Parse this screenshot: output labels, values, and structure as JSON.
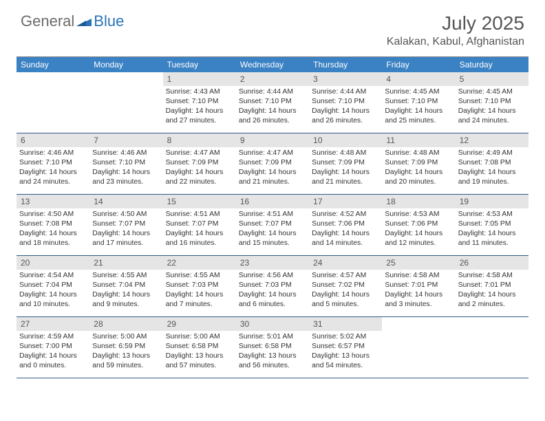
{
  "logo": {
    "general": "General",
    "blue": "Blue"
  },
  "title": "July 2025",
  "location": "Kalakan, Kabul, Afghanistan",
  "colors": {
    "header_bar": "#3b82c4",
    "day_num_bg": "#e5e5e5",
    "week_border": "#2f5a88",
    "logo_gray": "#6b6b6b",
    "logo_blue": "#2a73b8"
  },
  "weekdays": [
    "Sunday",
    "Monday",
    "Tuesday",
    "Wednesday",
    "Thursday",
    "Friday",
    "Saturday"
  ],
  "firstDayOffset": 2,
  "days": [
    {
      "n": 1,
      "sunrise": "4:43 AM",
      "sunset": "7:10 PM",
      "daylight": "14 hours and 27 minutes."
    },
    {
      "n": 2,
      "sunrise": "4:44 AM",
      "sunset": "7:10 PM",
      "daylight": "14 hours and 26 minutes."
    },
    {
      "n": 3,
      "sunrise": "4:44 AM",
      "sunset": "7:10 PM",
      "daylight": "14 hours and 26 minutes."
    },
    {
      "n": 4,
      "sunrise": "4:45 AM",
      "sunset": "7:10 PM",
      "daylight": "14 hours and 25 minutes."
    },
    {
      "n": 5,
      "sunrise": "4:45 AM",
      "sunset": "7:10 PM",
      "daylight": "14 hours and 24 minutes."
    },
    {
      "n": 6,
      "sunrise": "4:46 AM",
      "sunset": "7:10 PM",
      "daylight": "14 hours and 24 minutes."
    },
    {
      "n": 7,
      "sunrise": "4:46 AM",
      "sunset": "7:10 PM",
      "daylight": "14 hours and 23 minutes."
    },
    {
      "n": 8,
      "sunrise": "4:47 AM",
      "sunset": "7:09 PM",
      "daylight": "14 hours and 22 minutes."
    },
    {
      "n": 9,
      "sunrise": "4:47 AM",
      "sunset": "7:09 PM",
      "daylight": "14 hours and 21 minutes."
    },
    {
      "n": 10,
      "sunrise": "4:48 AM",
      "sunset": "7:09 PM",
      "daylight": "14 hours and 21 minutes."
    },
    {
      "n": 11,
      "sunrise": "4:48 AM",
      "sunset": "7:09 PM",
      "daylight": "14 hours and 20 minutes."
    },
    {
      "n": 12,
      "sunrise": "4:49 AM",
      "sunset": "7:08 PM",
      "daylight": "14 hours and 19 minutes."
    },
    {
      "n": 13,
      "sunrise": "4:50 AM",
      "sunset": "7:08 PM",
      "daylight": "14 hours and 18 minutes."
    },
    {
      "n": 14,
      "sunrise": "4:50 AM",
      "sunset": "7:07 PM",
      "daylight": "14 hours and 17 minutes."
    },
    {
      "n": 15,
      "sunrise": "4:51 AM",
      "sunset": "7:07 PM",
      "daylight": "14 hours and 16 minutes."
    },
    {
      "n": 16,
      "sunrise": "4:51 AM",
      "sunset": "7:07 PM",
      "daylight": "14 hours and 15 minutes."
    },
    {
      "n": 17,
      "sunrise": "4:52 AM",
      "sunset": "7:06 PM",
      "daylight": "14 hours and 14 minutes."
    },
    {
      "n": 18,
      "sunrise": "4:53 AM",
      "sunset": "7:06 PM",
      "daylight": "14 hours and 12 minutes."
    },
    {
      "n": 19,
      "sunrise": "4:53 AM",
      "sunset": "7:05 PM",
      "daylight": "14 hours and 11 minutes."
    },
    {
      "n": 20,
      "sunrise": "4:54 AM",
      "sunset": "7:04 PM",
      "daylight": "14 hours and 10 minutes."
    },
    {
      "n": 21,
      "sunrise": "4:55 AM",
      "sunset": "7:04 PM",
      "daylight": "14 hours and 9 minutes."
    },
    {
      "n": 22,
      "sunrise": "4:55 AM",
      "sunset": "7:03 PM",
      "daylight": "14 hours and 7 minutes."
    },
    {
      "n": 23,
      "sunrise": "4:56 AM",
      "sunset": "7:03 PM",
      "daylight": "14 hours and 6 minutes."
    },
    {
      "n": 24,
      "sunrise": "4:57 AM",
      "sunset": "7:02 PM",
      "daylight": "14 hours and 5 minutes."
    },
    {
      "n": 25,
      "sunrise": "4:58 AM",
      "sunset": "7:01 PM",
      "daylight": "14 hours and 3 minutes."
    },
    {
      "n": 26,
      "sunrise": "4:58 AM",
      "sunset": "7:01 PM",
      "daylight": "14 hours and 2 minutes."
    },
    {
      "n": 27,
      "sunrise": "4:59 AM",
      "sunset": "7:00 PM",
      "daylight": "14 hours and 0 minutes."
    },
    {
      "n": 28,
      "sunrise": "5:00 AM",
      "sunset": "6:59 PM",
      "daylight": "13 hours and 59 minutes."
    },
    {
      "n": 29,
      "sunrise": "5:00 AM",
      "sunset": "6:58 PM",
      "daylight": "13 hours and 57 minutes."
    },
    {
      "n": 30,
      "sunrise": "5:01 AM",
      "sunset": "6:58 PM",
      "daylight": "13 hours and 56 minutes."
    },
    {
      "n": 31,
      "sunrise": "5:02 AM",
      "sunset": "6:57 PM",
      "daylight": "13 hours and 54 minutes."
    }
  ],
  "labels": {
    "sunrise": "Sunrise:",
    "sunset": "Sunset:",
    "daylight": "Daylight:"
  }
}
